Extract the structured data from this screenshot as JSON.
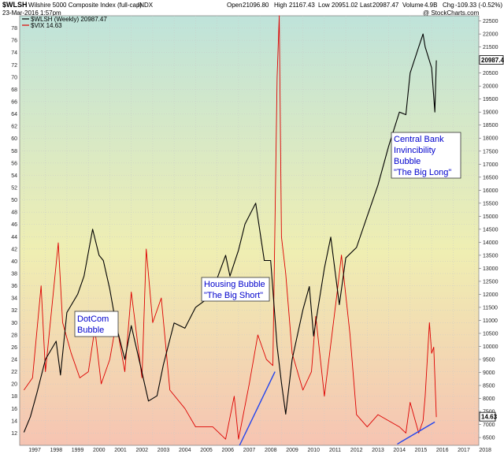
{
  "header": {
    "symbol": "$WLSH",
    "description": "Wilshire 5000 Composite Index (full-cap)",
    "exchange": "INDX",
    "date": "23-Mar-2016 1:57pm",
    "open_label": "Open",
    "open_value": "21096.80",
    "high_label": "High",
    "high_value": "21167.43",
    "low_label": "Low",
    "low_value": "20951.02",
    "last_label": "Last",
    "last_value": "20987.47",
    "volume_label": "Volume",
    "volume_value": "4.9B",
    "chg_label": "Chg",
    "chg_value": "-109.33 (-0.52%)",
    "watermark": "@ StockCharts.com"
  },
  "legend": {
    "wlsh": "$WLSH (Weekly) 20987.47",
    "vix": "$VIX 14.63"
  },
  "colors": {
    "wlsh": "#000000",
    "vix": "#dd0000",
    "trend": "#2244ee",
    "note_text": "#0000cc",
    "bg_top": "#bfe3da",
    "bg_mid": "#efeeb2",
    "bg_bottom": "#f6c4b2"
  },
  "annotations": [
    {
      "text_lines": [
        "DotCom",
        "Bubble"
      ]
    },
    {
      "text_lines": [
        "Housing Bubble",
        "\"The Big Short\""
      ]
    },
    {
      "text_lines": [
        "Central Bank",
        "Invincibility",
        "Bubble",
        "\"The Big Long\""
      ]
    }
  ],
  "chart_data": {
    "type": "line",
    "title": "$WLSH Wilshire 5000 Composite Index (full-cap) INDX",
    "x_range": [
      1996.8,
      2018.2
    ],
    "x_ticks": [
      "1997",
      "1998",
      "1999",
      "2000",
      "2001",
      "2002",
      "2003",
      "2004",
      "2005",
      "2006",
      "2007",
      "2008",
      "2009",
      "2010",
      "2011",
      "2012",
      "2013",
      "2014",
      "2015",
      "2016",
      "2017",
      "2018"
    ],
    "left_axis": {
      "range": [
        10,
        80
      ],
      "ticks": [
        12,
        14,
        16,
        18,
        20,
        22,
        24,
        26,
        28,
        30,
        32,
        34,
        36,
        38,
        40,
        42,
        44,
        46,
        48,
        50,
        52,
        54,
        56,
        58,
        60,
        62,
        64,
        66,
        68,
        70,
        72,
        74,
        76,
        78
      ]
    },
    "right_axis": {
      "range": [
        6200,
        22700
      ],
      "ticks": [
        6500,
        7000,
        7500,
        8000,
        8500,
        9000,
        9500,
        10000,
        10500,
        11000,
        11500,
        12000,
        12500,
        13000,
        13500,
        14000,
        14500,
        15000,
        15500,
        16000,
        16500,
        17000,
        17500,
        18000,
        18500,
        19000,
        19500,
        20000,
        20500,
        21000,
        21500,
        22000,
        22500
      ],
      "last_value_tag": "20987.47"
    },
    "vix_last_tag": "14.63",
    "series": [
      {
        "name": "$WLSH (Weekly) 20987.47",
        "axis": "right",
        "x": [
          1997.0,
          1997.3,
          1997.6,
          1998.0,
          1998.5,
          1998.7,
          1999.0,
          1999.5,
          1999.8,
          2000.2,
          2000.5,
          2000.7,
          2001.0,
          2001.3,
          2001.7,
          2002.0,
          2002.5,
          2002.8,
          2003.2,
          2003.5,
          2004.0,
          2004.5,
          2005.0,
          2005.5,
          2006.0,
          2006.4,
          2006.6,
          2007.0,
          2007.3,
          2007.8,
          2008.2,
          2008.5,
          2008.8,
          2009.0,
          2009.2,
          2009.5,
          2010.0,
          2010.3,
          2010.5,
          2011.0,
          2011.3,
          2011.7,
          2012.0,
          2012.5,
          2013.0,
          2013.5,
          2014.0,
          2014.5,
          2014.8,
          2015.0,
          2015.4,
          2015.6,
          2015.7,
          2016.0,
          2016.15,
          2016.22
        ],
        "values": [
          6700,
          7300,
          8200,
          9500,
          10200,
          8900,
          11300,
          12000,
          12700,
          14500,
          13500,
          13300,
          12200,
          10800,
          9500,
          10800,
          9000,
          7900,
          8100,
          9300,
          10900,
          10700,
          11500,
          11800,
          12600,
          13500,
          12700,
          13700,
          14700,
          15500,
          13300,
          13300,
          10000,
          8600,
          7400,
          9500,
          11400,
          12300,
          10400,
          13000,
          14200,
          11600,
          13400,
          13800,
          15000,
          16200,
          17700,
          19000,
          18900,
          20500,
          21500,
          22000,
          21500,
          20700,
          19000,
          20987
        ]
      },
      {
        "name": "$VIX 14.63",
        "axis": "left",
        "x": [
          1997.0,
          1997.4,
          1997.8,
          1998.0,
          1998.6,
          1998.8,
          1999.2,
          1999.6,
          2000.0,
          2000.3,
          2000.6,
          2001.0,
          2001.3,
          2001.7,
          2002.0,
          2002.5,
          2002.7,
          2003.0,
          2003.4,
          2003.8,
          2004.5,
          2005.0,
          2005.8,
          2006.4,
          2006.8,
          2007.0,
          2007.5,
          2007.9,
          2008.3,
          2008.6,
          2008.8,
          2008.9,
          2009.0,
          2009.2,
          2009.5,
          2010.0,
          2010.4,
          2010.6,
          2011.0,
          2011.6,
          2011.8,
          2012.2,
          2012.5,
          2013.0,
          2013.5,
          2014.0,
          2014.5,
          2014.8,
          2015.0,
          2015.4,
          2015.6,
          2015.7,
          2015.9,
          2016.0,
          2016.1,
          2016.22
        ],
        "values": [
          19,
          21,
          36,
          22,
          43,
          30,
          25,
          21,
          22,
          29,
          20,
          24,
          30,
          22,
          35,
          21,
          42,
          30,
          34,
          19,
          16,
          13,
          13,
          11,
          18,
          11,
          20,
          28,
          24,
          23,
          70,
          80,
          44,
          38,
          25,
          19,
          22,
          31,
          18,
          35,
          41,
          28,
          15,
          13,
          15,
          14,
          13,
          12,
          17,
          12,
          14,
          18,
          30,
          25,
          26,
          14.6
        ]
      }
    ],
    "trend_lines": [
      {
        "x": [
          2007.05,
          2008.7
        ],
        "axis": "left",
        "values": [
          10,
          22
        ]
      },
      {
        "x": [
          2014.4,
          2016.15
        ],
        "axis": "left",
        "values": [
          10.2,
          13.8
        ]
      }
    ],
    "grid": true
  }
}
